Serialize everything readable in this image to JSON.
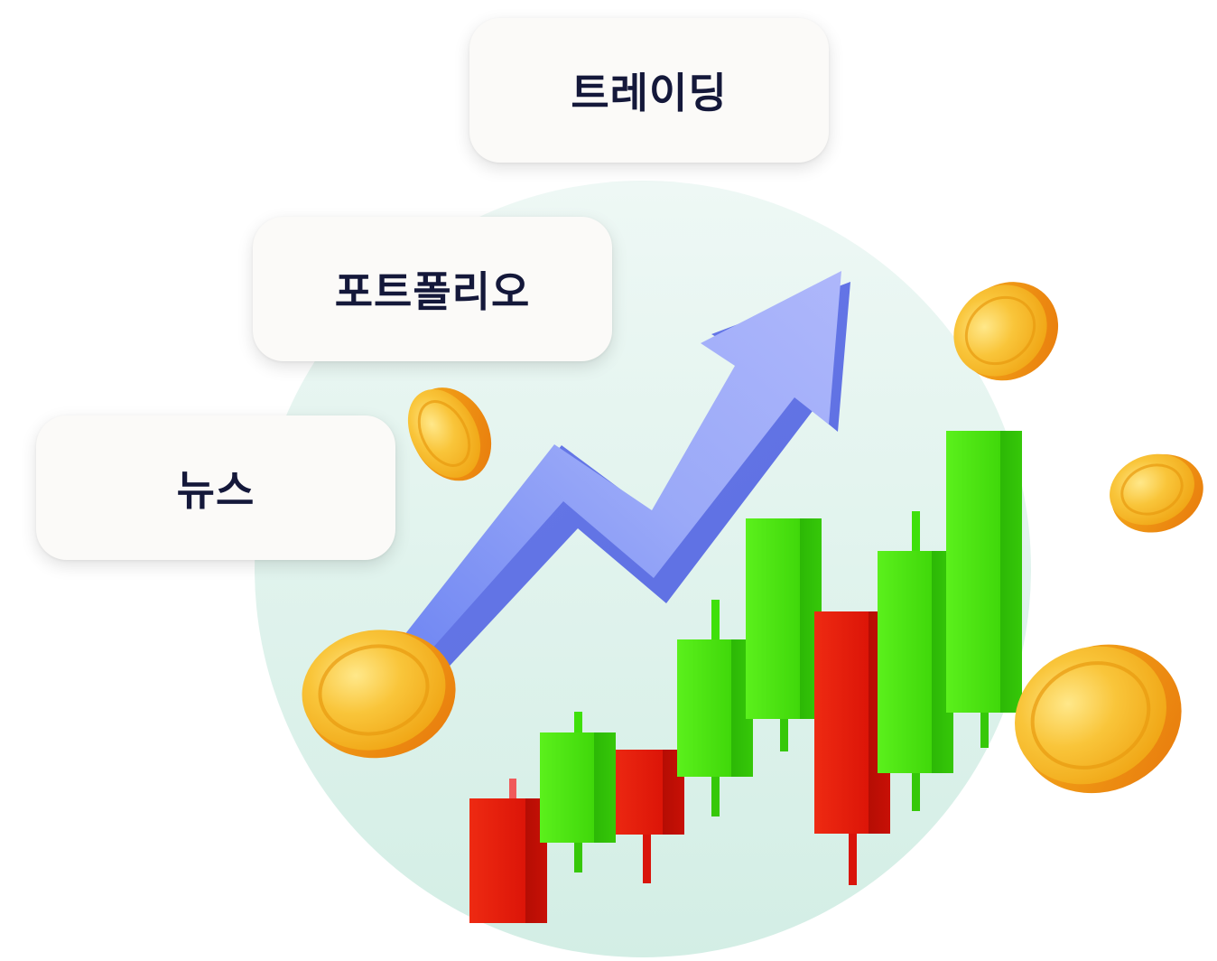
{
  "menu": {
    "items": [
      {
        "id": "trading",
        "label": "트레이딩"
      },
      {
        "id": "portfolio",
        "label": "포트폴리오"
      },
      {
        "id": "news",
        "label": "뉴스"
      }
    ]
  },
  "illustration": {
    "elements": [
      "rising-arrow",
      "candlestick-chart",
      "gold-coins",
      "backdrop-circle"
    ],
    "colors": {
      "backdrop": "#e2f3ee",
      "arrow": "#8a9cf7",
      "candle_up": "#3fe00a",
      "candle_down": "#e8170a",
      "coin": "#f7b21a",
      "label_text": "#14183a"
    },
    "candles": [
      {
        "direction": "down"
      },
      {
        "direction": "up"
      },
      {
        "direction": "down"
      },
      {
        "direction": "up"
      },
      {
        "direction": "up"
      },
      {
        "direction": "down"
      },
      {
        "direction": "up"
      },
      {
        "direction": "up"
      }
    ]
  }
}
